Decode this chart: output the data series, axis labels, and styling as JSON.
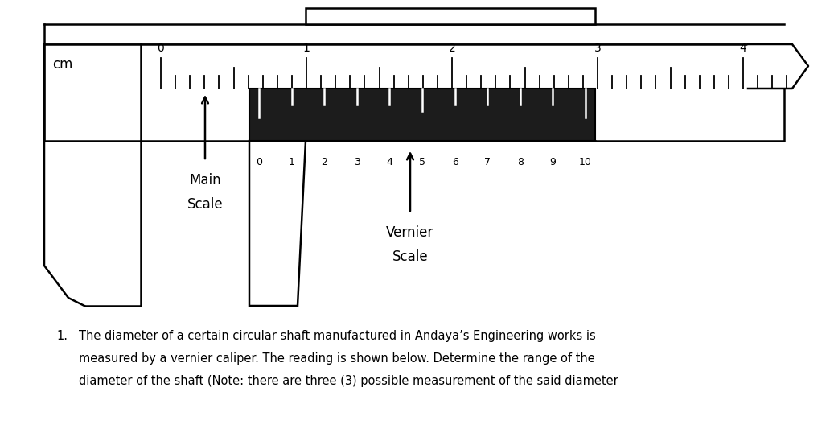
{
  "bg_color": "#ffffff",
  "vernier_fill": "#1c1c1c",
  "main_scale_labels": [
    "0",
    "1",
    "2",
    "3",
    "4"
  ],
  "vernier_scale_labels": [
    "0",
    "1",
    "2",
    "3",
    "4",
    "5",
    "6",
    "7",
    "8",
    "9",
    "10"
  ],
  "cm_label": "cm",
  "main_scale_text": [
    "Main",
    "Scale"
  ],
  "vernier_scale_text": [
    "Vernier",
    "Scale"
  ],
  "question_lines": [
    "The diameter of a certain circular shaft manufactured in Andaya’s Engineering works is",
    "measured by a vernier caliper. The reading is shown below. Determine the range of the",
    "diameter of the shaft (Note: there are three (3) possible measurement of the said diameter"
  ]
}
